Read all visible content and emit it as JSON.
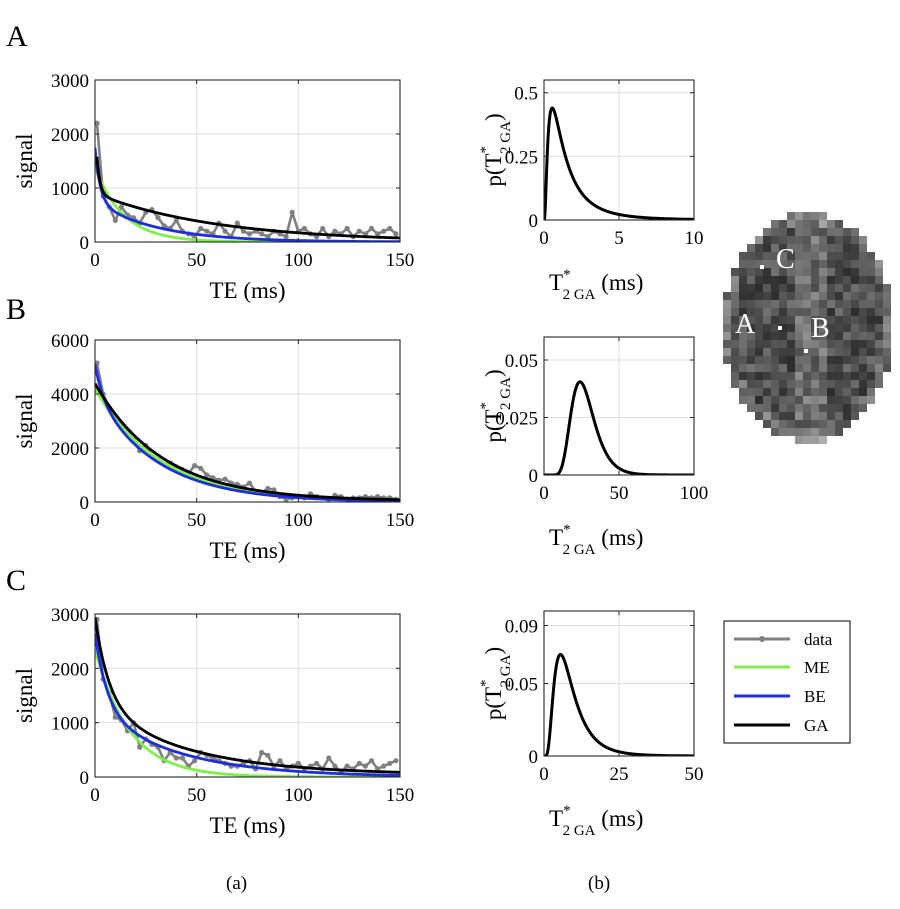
{
  "figure": {
    "caption_a": "(a)",
    "caption_b": "(b)",
    "legend": [
      {
        "label": "data",
        "color": "#808080",
        "marker": true
      },
      {
        "label": "ME",
        "color": "#7FF047"
      },
      {
        "label": "BE",
        "color": "#1C2EE0"
      },
      {
        "label": "GA",
        "color": "#000000"
      }
    ],
    "brain_labels": [
      "C",
      "A",
      "B"
    ]
  },
  "chart_data": [
    {
      "id": "A-signal",
      "panel": "A",
      "type": "line",
      "title": "",
      "xlabel": "TE (ms)",
      "ylabel": "signal",
      "xlim": [
        0,
        150
      ],
      "ylim": [
        0,
        3000
      ],
      "xticks": [
        0,
        50,
        100,
        150
      ],
      "yticks": [
        0,
        1000,
        2000,
        3000
      ],
      "xtick_labels": [
        "0",
        "50",
        "100",
        "150"
      ],
      "ytick_labels": [
        "0",
        "1000",
        "2000",
        "3000"
      ],
      "grid": true,
      "series": [
        {
          "name": "data",
          "color": "#808080",
          "x": [
            1,
            4,
            7,
            10,
            13,
            16,
            19,
            22,
            25,
            28,
            31,
            34,
            37,
            40,
            43,
            46,
            49,
            52,
            55,
            58,
            61,
            64,
            67,
            70,
            73,
            76,
            79,
            82,
            85,
            88,
            91,
            94,
            97,
            100,
            103,
            106,
            109,
            112,
            115,
            118,
            121,
            124,
            127,
            130,
            133,
            136,
            139,
            142,
            145,
            148
          ],
          "y": [
            2200,
            850,
            650,
            400,
            650,
            500,
            450,
            350,
            550,
            600,
            450,
            300,
            250,
            400,
            200,
            150,
            100,
            250,
            200,
            150,
            350,
            200,
            100,
            350,
            200,
            150,
            200,
            150,
            100,
            200,
            150,
            100,
            550,
            200,
            250,
            150,
            100,
            250,
            100,
            200,
            150,
            250,
            100,
            200,
            150,
            250,
            150,
            200,
            250,
            150
          ]
        },
        {
          "name": "ME",
          "color": "#7FF047",
          "model": "mono",
          "S0": 1380,
          "T": 14,
          "c": 0
        },
        {
          "name": "BE",
          "color": "#1C2EE0",
          "model": "bi",
          "a1": 1000,
          "t1": 2.5,
          "a2": 750,
          "t2": 30
        },
        {
          "name": "GA",
          "color": "#000000",
          "model": "bi",
          "a1": 1350,
          "t1": 1.5,
          "a2": 900,
          "t2": 60,
          "start": 1
        }
      ]
    },
    {
      "id": "A-pdf",
      "panel": "A",
      "type": "line",
      "xlabel": "T*2 GA (ms)",
      "ylabel": "p(T*2 GA)",
      "xlim": [
        0,
        10
      ],
      "ylim": [
        0,
        0.55
      ],
      "xticks": [
        0,
        5,
        10
      ],
      "yticks": [
        0,
        0.25,
        0.5
      ],
      "xtick_labels": [
        "0",
        "5",
        "10"
      ],
      "ytick_labels": [
        "0",
        "0.25",
        "0.5"
      ],
      "grid": true,
      "series": [
        {
          "name": "GA",
          "color": "#000000",
          "model": "lognormal",
          "mode": 0.55,
          "peak": 0.44,
          "sigma": 0.9
        }
      ]
    },
    {
      "id": "B-signal",
      "panel": "B",
      "type": "line",
      "xlabel": "TE (ms)",
      "ylabel": "signal",
      "xlim": [
        0,
        150
      ],
      "ylim": [
        0,
        6000
      ],
      "xticks": [
        0,
        50,
        100,
        150
      ],
      "yticks": [
        0,
        2000,
        4000,
        6000
      ],
      "xtick_labels": [
        "0",
        "50",
        "100",
        "150"
      ],
      "ytick_labels": [
        "0",
        "2000",
        "4000",
        "6000"
      ],
      "grid": true,
      "series": [
        {
          "name": "data",
          "color": "#808080",
          "x": [
            1,
            4,
            7,
            10,
            13,
            16,
            19,
            22,
            25,
            28,
            31,
            34,
            37,
            40,
            43,
            46,
            49,
            52,
            55,
            58,
            61,
            64,
            67,
            70,
            73,
            76,
            79,
            82,
            85,
            88,
            91,
            94,
            97,
            100,
            103,
            106,
            109,
            112,
            115,
            118,
            121,
            124,
            127,
            130,
            133,
            136,
            139,
            142,
            145,
            148
          ],
          "y": [
            5150,
            4000,
            3500,
            3200,
            2900,
            2600,
            2300,
            1900,
            2100,
            1700,
            1550,
            1400,
            1450,
            1300,
            1200,
            1050,
            1350,
            1250,
            1000,
            900,
            800,
            850,
            700,
            650,
            550,
            700,
            400,
            350,
            500,
            450,
            200,
            100,
            150,
            200,
            150,
            300,
            200,
            150,
            100,
            250,
            200,
            100,
            150,
            150,
            200,
            150,
            200,
            150,
            150,
            100
          ]
        },
        {
          "name": "ME",
          "color": "#7FF047",
          "model": "mono",
          "S0": 4200,
          "T": 32,
          "c": 0
        },
        {
          "name": "BE",
          "color": "#1C2EE0",
          "model": "bi",
          "a1": 1100,
          "t1": 4,
          "a2": 4000,
          "t2": 31
        },
        {
          "name": "GA",
          "color": "#000000",
          "model": "mono",
          "S0": 4350,
          "T": 33,
          "c": 40
        }
      ]
    },
    {
      "id": "B-pdf",
      "panel": "B",
      "type": "line",
      "xlabel": "T*2 GA (ms)",
      "ylabel": "p(T*2 GA)",
      "xlim": [
        0,
        100
      ],
      "ylim": [
        0,
        0.06
      ],
      "xticks": [
        0,
        50,
        100
      ],
      "yticks": [
        0,
        0.025,
        0.05
      ],
      "xtick_labels": [
        "0",
        "50",
        "100"
      ],
      "ytick_labels": [
        "0",
        "0.025",
        "0.05"
      ],
      "grid": true,
      "series": [
        {
          "name": "GA",
          "color": "#000000",
          "model": "lognormal",
          "mode": 24,
          "peak": 0.0405,
          "sigma": 0.32
        }
      ]
    },
    {
      "id": "C-signal",
      "panel": "C",
      "type": "line",
      "xlabel": "TE (ms)",
      "ylabel": "signal",
      "xlim": [
        0,
        150
      ],
      "ylim": [
        0,
        3000
      ],
      "xticks": [
        0,
        50,
        100,
        150
      ],
      "yticks": [
        0,
        1000,
        2000,
        3000
      ],
      "xtick_labels": [
        "0",
        "50",
        "100",
        "150"
      ],
      "ytick_labels": [
        "0",
        "1000",
        "2000",
        "3000"
      ],
      "grid": true,
      "series": [
        {
          "name": "data",
          "color": "#808080",
          "x": [
            1,
            4,
            7,
            10,
            13,
            16,
            19,
            22,
            25,
            28,
            31,
            34,
            37,
            40,
            43,
            46,
            49,
            52,
            55,
            58,
            61,
            64,
            67,
            70,
            73,
            76,
            79,
            82,
            85,
            88,
            91,
            94,
            97,
            100,
            103,
            106,
            109,
            112,
            115,
            118,
            121,
            124,
            127,
            130,
            133,
            136,
            139,
            142,
            145,
            148
          ],
          "y": [
            2900,
            1800,
            1550,
            1100,
            1050,
            850,
            1000,
            550,
            700,
            600,
            550,
            300,
            450,
            350,
            350,
            200,
            300,
            450,
            400,
            350,
            300,
            250,
            200,
            200,
            250,
            300,
            150,
            450,
            400,
            200,
            300,
            150,
            200,
            250,
            150,
            200,
            250,
            150,
            350,
            200,
            100,
            200,
            150,
            250,
            200,
            300,
            150,
            200,
            250,
            300
          ]
        },
        {
          "name": "ME",
          "color": "#7FF047",
          "model": "mono",
          "S0": 2350,
          "T": 17,
          "c": 0
        },
        {
          "name": "BE",
          "color": "#1C2EE0",
          "model": "bi",
          "a1": 1400,
          "t1": 6,
          "a2": 1250,
          "t2": 40
        },
        {
          "name": "GA",
          "color": "#000000",
          "model": "bi",
          "a1": 1600,
          "t1": 7,
          "a2": 1300,
          "t2": 45,
          "c": 40
        }
      ]
    },
    {
      "id": "C-pdf",
      "panel": "C",
      "type": "line",
      "xlabel": "T*2 GA (ms)",
      "ylabel": "p(T*2 GA)",
      "xlim": [
        0,
        50
      ],
      "ylim": [
        0,
        0.1
      ],
      "xticks": [
        0,
        25,
        50
      ],
      "yticks": [
        0,
        0.05,
        0.09
      ],
      "xtick_labels": [
        "0",
        "25",
        "50"
      ],
      "ytick_labels": [
        "0",
        "0.05",
        "0.09"
      ],
      "grid": true,
      "series": [
        {
          "name": "GA",
          "color": "#000000",
          "model": "lognormal",
          "mode": 5.5,
          "peak": 0.07,
          "sigma": 0.6
        }
      ]
    }
  ]
}
